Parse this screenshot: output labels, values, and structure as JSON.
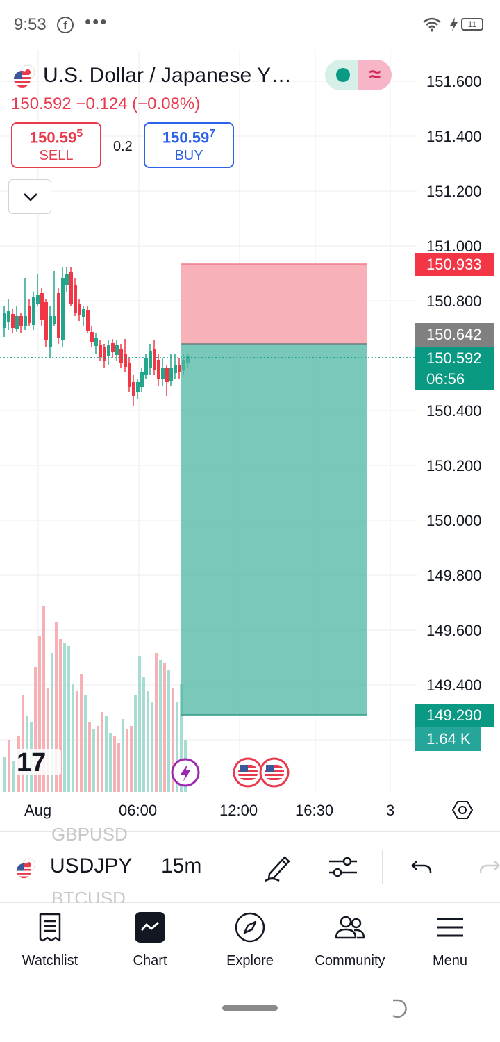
{
  "status_bar": {
    "time": "9:53",
    "dots": "•••",
    "battery": "11"
  },
  "header": {
    "title": "U.S. Dollar / Japanese Y…",
    "price_line": "150.592  −0.124 (−0.08%)",
    "toggle_wave": "≈",
    "sell": {
      "price_main": "150.59",
      "price_sup": "5",
      "label": "SELL"
    },
    "buy": {
      "price_main": "150.59",
      "price_sup": "7",
      "label": "BUY"
    },
    "spread": "0.2"
  },
  "price_axis": [
    "151.600",
    "151.400",
    "151.200",
    "151.000",
    "150.800",
    "150.400",
    "150.200",
    "150.000",
    "149.800",
    "149.600",
    "149.400"
  ],
  "price_tags": {
    "stop": "150.933",
    "entry": "150.642",
    "current": "150.592",
    "countdown": "06:56",
    "target": "149.290",
    "volume": "1.64 K"
  },
  "time_axis": [
    "Aug",
    "06:00",
    "12:00",
    "16:30",
    "3"
  ],
  "logo_text": "17",
  "toolbar": {
    "ghost_above": "GBPUSD",
    "symbol": "USDJPY",
    "ghost_below": "BTCUSD",
    "interval": "15m"
  },
  "nav": {
    "watchlist": "Watchlist",
    "chart": "Chart",
    "explore": "Explore",
    "community": "Community",
    "menu": "Menu"
  },
  "colors": {
    "up": "#22a68c",
    "down": "#f23645",
    "accent_blue": "#2d62e8"
  }
}
